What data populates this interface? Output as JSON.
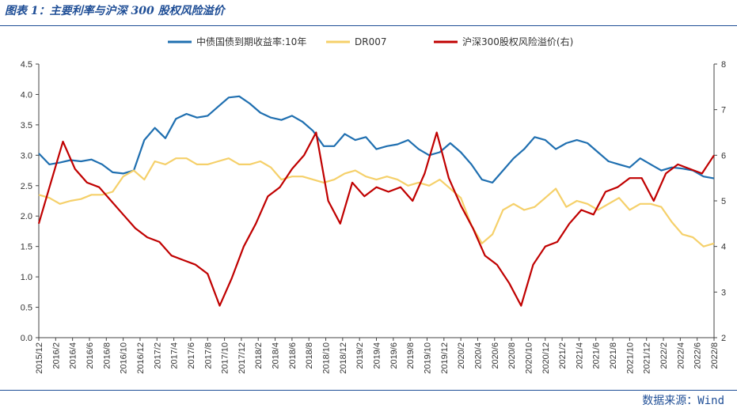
{
  "title": "图表 1：主要利率与沪深 300 股权风险溢价",
  "source": "数据来源：Wind",
  "chart_data": {
    "type": "line",
    "legend_position": "top",
    "grid": false,
    "y_left": {
      "ylim": [
        0,
        4.5
      ],
      "ticks": [
        "0.0",
        "0.5",
        "1.0",
        "1.5",
        "2.0",
        "2.5",
        "3.0",
        "3.5",
        "4.0",
        "4.5"
      ]
    },
    "y_right": {
      "ylim": [
        2,
        8
      ],
      "ticks": [
        "2",
        "3",
        "4",
        "5",
        "6",
        "7",
        "8"
      ]
    },
    "x_ticks": [
      "2015/12",
      "2016/2",
      "2016/4",
      "2016/6",
      "2016/8",
      "2016/10",
      "2016/12",
      "2017/2",
      "2017/4",
      "2017/6",
      "2017/8",
      "2017/10",
      "2017/12",
      "2018/2",
      "2018/4",
      "2018/6",
      "2018/8",
      "2018/10",
      "2018/12",
      "2019/2",
      "2019/4",
      "2019/6",
      "2019/8",
      "2019/10",
      "2019/12",
      "2020/2",
      "2020/4",
      "2020/6",
      "2020/8",
      "2020/10",
      "2020/12",
      "2021/2",
      "2021/4",
      "2021/6",
      "2021/8",
      "2021/10",
      "2021/12",
      "2022/2",
      "2022/4",
      "2022/6",
      "2022/8"
    ],
    "series": [
      {
        "name": "中债国债到期收益率:10年",
        "axis": "left",
        "color": "#1f6fb0",
        "values": [
          3.03,
          2.85,
          2.88,
          2.92,
          2.9,
          2.93,
          2.85,
          2.72,
          2.7,
          2.75,
          3.25,
          3.45,
          3.28,
          3.6,
          3.68,
          3.62,
          3.65,
          3.8,
          3.95,
          3.97,
          3.85,
          3.7,
          3.62,
          3.58,
          3.65,
          3.55,
          3.4,
          3.15,
          3.15,
          3.35,
          3.25,
          3.3,
          3.1,
          3.15,
          3.18,
          3.25,
          3.1,
          3.0,
          3.05,
          3.2,
          3.05,
          2.85,
          2.6,
          2.55,
          2.75,
          2.95,
          3.1,
          3.3,
          3.25,
          3.1,
          3.2,
          3.25,
          3.2,
          3.05,
          2.9,
          2.85,
          2.8,
          2.95,
          2.85,
          2.75,
          2.8,
          2.78,
          2.75,
          2.65,
          2.62
        ]
      },
      {
        "name": "DR007",
        "axis": "left",
        "color": "#f5d06a",
        "values": [
          2.35,
          2.3,
          2.2,
          2.25,
          2.28,
          2.35,
          2.35,
          2.4,
          2.65,
          2.75,
          2.6,
          2.9,
          2.85,
          2.95,
          2.95,
          2.85,
          2.85,
          2.9,
          2.95,
          2.85,
          2.85,
          2.9,
          2.8,
          2.6,
          2.65,
          2.65,
          2.6,
          2.55,
          2.6,
          2.7,
          2.75,
          2.65,
          2.6,
          2.65,
          2.6,
          2.5,
          2.55,
          2.5,
          2.6,
          2.45,
          2.3,
          1.85,
          1.55,
          1.7,
          2.1,
          2.2,
          2.1,
          2.15,
          2.3,
          2.45,
          2.15,
          2.25,
          2.2,
          2.1,
          2.2,
          2.3,
          2.1,
          2.2,
          2.2,
          2.15,
          1.9,
          1.7,
          1.65,
          1.5,
          1.55
        ]
      },
      {
        "name": "沪深300股权风险溢价(右)",
        "axis": "right",
        "color": "#c00000",
        "values": [
          4.5,
          5.4,
          6.3,
          5.7,
          5.4,
          5.3,
          5.0,
          4.7,
          4.4,
          4.2,
          4.1,
          3.8,
          3.7,
          3.6,
          3.4,
          2.7,
          3.3,
          4.0,
          4.5,
          5.1,
          5.3,
          5.7,
          6.0,
          6.5,
          5.0,
          4.5,
          5.4,
          5.1,
          5.3,
          5.2,
          5.3,
          5.0,
          5.6,
          6.5,
          5.5,
          4.9,
          4.4,
          3.8,
          3.6,
          3.2,
          2.7,
          3.6,
          4.0,
          4.1,
          4.5,
          4.8,
          4.7,
          5.2,
          5.3,
          5.5,
          5.5,
          5.0,
          5.6,
          5.8,
          5.7,
          5.6,
          6.0
        ]
      }
    ]
  }
}
